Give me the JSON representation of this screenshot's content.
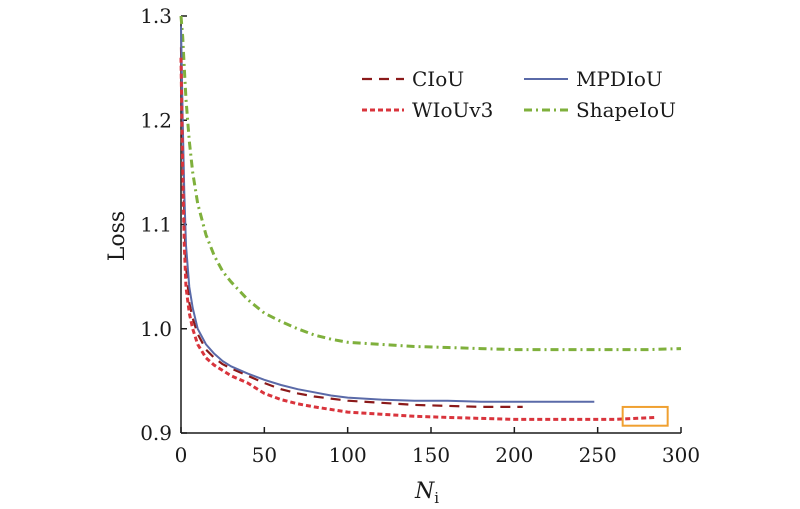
{
  "chart_data": {
    "type": "line",
    "title": "",
    "xlabel": "N",
    "xlabel_subscript": "i",
    "ylabel": "Loss",
    "xlim": [
      0,
      300
    ],
    "ylim": [
      0.9,
      1.3
    ],
    "xticks": [
      0,
      50,
      100,
      150,
      200,
      250,
      300
    ],
    "yticks": [
      0.9,
      1.0,
      1.1,
      1.2,
      1.3
    ],
    "xtick_labels": [
      "0",
      "50",
      "100",
      "150",
      "200",
      "250",
      "300"
    ],
    "ytick_labels": [
      "0.9",
      "1.0",
      "1.1",
      "1.2",
      "1.3"
    ],
    "grid": false,
    "legend_position": "top-right",
    "series": [
      {
        "name": "CIoU",
        "color": "#8b1a1a",
        "style": "long-dash",
        "x": [
          0,
          1,
          2,
          3,
          5,
          7,
          10,
          15,
          20,
          25,
          30,
          40,
          50,
          60,
          70,
          80,
          90,
          100,
          120,
          140,
          160,
          180,
          200,
          205
        ],
        "y": [
          1.27,
          1.18,
          1.11,
          1.06,
          1.025,
          1.01,
          0.995,
          0.98,
          0.972,
          0.966,
          0.962,
          0.955,
          0.948,
          0.942,
          0.938,
          0.935,
          0.933,
          0.931,
          0.929,
          0.927,
          0.926,
          0.925,
          0.925,
          0.925
        ]
      },
      {
        "name": "MPDIoU",
        "color": "#5a6aa8",
        "style": "solid",
        "x": [
          0,
          1,
          2,
          3,
          5,
          7,
          10,
          15,
          20,
          25,
          30,
          40,
          50,
          60,
          70,
          80,
          90,
          100,
          120,
          140,
          160,
          180,
          200,
          220,
          248
        ],
        "y": [
          1.29,
          1.2,
          1.13,
          1.08,
          1.04,
          1.02,
          1.0,
          0.985,
          0.976,
          0.969,
          0.964,
          0.957,
          0.951,
          0.946,
          0.942,
          0.939,
          0.936,
          0.934,
          0.932,
          0.931,
          0.931,
          0.93,
          0.93,
          0.93,
          0.93
        ]
      },
      {
        "name": "WIoUv3",
        "color": "#d9343c",
        "style": "short-dash",
        "x": [
          0,
          1,
          2,
          3,
          5,
          7,
          10,
          15,
          20,
          25,
          30,
          40,
          50,
          60,
          70,
          80,
          100,
          120,
          140,
          160,
          180,
          200,
          220,
          240,
          260,
          285
        ],
        "y": [
          1.26,
          1.15,
          1.08,
          1.04,
          1.015,
          1.0,
          0.985,
          0.972,
          0.965,
          0.96,
          0.955,
          0.948,
          0.938,
          0.932,
          0.928,
          0.925,
          0.92,
          0.918,
          0.916,
          0.915,
          0.914,
          0.913,
          0.913,
          0.913,
          0.913,
          0.915
        ]
      },
      {
        "name": "ShapeIoU",
        "color": "#7fb03c",
        "style": "dash-dot",
        "x": [
          0,
          1,
          2,
          3,
          5,
          7,
          10,
          15,
          20,
          25,
          30,
          40,
          50,
          60,
          70,
          80,
          90,
          100,
          120,
          140,
          160,
          180,
          200,
          220,
          250,
          280,
          300
        ],
        "y": [
          1.3,
          1.28,
          1.25,
          1.22,
          1.18,
          1.15,
          1.12,
          1.09,
          1.07,
          1.055,
          1.045,
          1.028,
          1.015,
          1.007,
          1.0,
          0.994,
          0.99,
          0.987,
          0.985,
          0.983,
          0.982,
          0.981,
          0.98,
          0.98,
          0.98,
          0.98,
          0.981
        ]
      }
    ],
    "annotations": [
      {
        "type": "box",
        "color": "#f0a030",
        "x": [
          265,
          292
        ],
        "y": [
          0.907,
          0.925
        ]
      }
    ]
  }
}
